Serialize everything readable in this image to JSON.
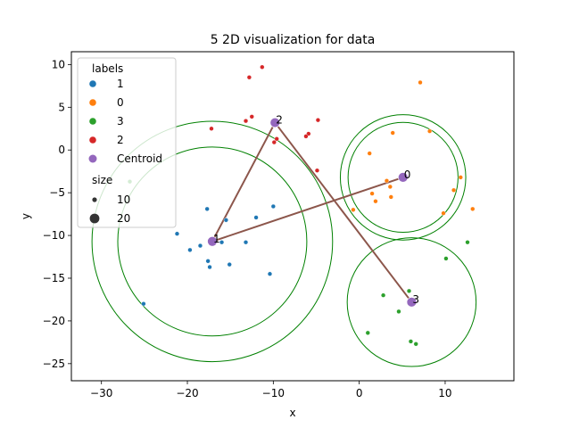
{
  "chart_data": {
    "type": "scatter",
    "title": "5 2D visualization for data",
    "xlabel": "x",
    "ylabel": "y",
    "xlim": [
      -33.5,
      18
    ],
    "ylim": [
      -27,
      11.5
    ],
    "xticks": [
      -30,
      -20,
      -10,
      0,
      10
    ],
    "yticks": [
      -25,
      -20,
      -15,
      -10,
      -5,
      0,
      5,
      10
    ],
    "xtick_labels": [
      "−30",
      "−20",
      "−10",
      "0",
      "10"
    ],
    "ytick_labels": [
      "−25",
      "−20",
      "−15",
      "−10",
      "−5",
      "0",
      "5",
      "10"
    ],
    "grid": false,
    "legend_placement": "top-left",
    "legend": {
      "labels_title": "labels",
      "entries": [
        {
          "label": "1",
          "color": "#1f77b4"
        },
        {
          "label": "0",
          "color": "#ff7f0e"
        },
        {
          "label": "3",
          "color": "#2ca02c"
        },
        {
          "label": "2",
          "color": "#d62728"
        },
        {
          "label": "Centroid",
          "color": "#9467bd"
        }
      ],
      "size_title": "size",
      "size_entries": [
        {
          "label": "10",
          "size": 10
        },
        {
          "label": "20",
          "size": 20
        }
      ]
    },
    "series": [
      {
        "label": "1",
        "color": "#1f77b4",
        "points": [
          [
            -17.7,
            -6.9
          ],
          [
            -15.5,
            -8.2
          ],
          [
            -12,
            -7.9
          ],
          [
            -10,
            -6.6
          ],
          [
            -21.2,
            -9.8
          ],
          [
            -19.7,
            -11.7
          ],
          [
            -18.5,
            -11.2
          ],
          [
            -16,
            -10.8
          ],
          [
            -13.2,
            -10.8
          ],
          [
            -17.6,
            -13
          ],
          [
            -17.4,
            -13.7
          ],
          [
            -15.1,
            -13.4
          ],
          [
            -10.4,
            -14.5
          ],
          [
            -25.1,
            -18
          ]
        ]
      },
      {
        "label": "0",
        "color": "#ff7f0e",
        "points": [
          [
            7.1,
            7.9
          ],
          [
            8.2,
            2.2
          ],
          [
            3.9,
            2
          ],
          [
            1.2,
            -0.4
          ],
          [
            11.8,
            -3.2
          ],
          [
            3.2,
            -3.6
          ],
          [
            11,
            -4.7
          ],
          [
            1.5,
            -5.1
          ],
          [
            3.6,
            -4.3
          ],
          [
            3.7,
            -5.5
          ],
          [
            1.9,
            -6
          ],
          [
            -0.7,
            -7
          ],
          [
            13.2,
            -6.9
          ],
          [
            9.8,
            -7.4
          ]
        ]
      },
      {
        "label": "3",
        "color": "#2ca02c",
        "points": [
          [
            -26.7,
            -3.7
          ],
          [
            12.6,
            -10.8
          ],
          [
            10.1,
            -12.7
          ],
          [
            5.8,
            -16.5
          ],
          [
            2.8,
            -17
          ],
          [
            4.6,
            -18.9
          ],
          [
            1,
            -21.4
          ],
          [
            6,
            -22.4
          ],
          [
            6.6,
            -22.7
          ]
        ]
      },
      {
        "label": "2",
        "color": "#d62728",
        "points": [
          [
            -11.3,
            9.7
          ],
          [
            -12.8,
            8.5
          ],
          [
            -12.5,
            3.9
          ],
          [
            -13.2,
            3.4
          ],
          [
            -4.8,
            3.5
          ],
          [
            -17.2,
            2.5
          ],
          [
            -5.9,
            1.9
          ],
          [
            -6.2,
            1.6
          ],
          [
            -9.6,
            1.3
          ],
          [
            -9.9,
            0.9
          ],
          [
            -4.9,
            -2.4
          ]
        ]
      }
    ],
    "centroids": [
      {
        "label": "0",
        "x": 5.1,
        "y": -3.2,
        "radii": [
          7.3,
          6.4
        ]
      },
      {
        "label": "1",
        "x": -17.1,
        "y": -10.7,
        "radii": [
          14,
          11
        ]
      },
      {
        "label": "2",
        "x": -9.8,
        "y": 3.2,
        "radii": []
      },
      {
        "label": "3",
        "x": 6.1,
        "y": -17.8,
        "radii": [
          7.5
        ]
      }
    ],
    "connections": [
      [
        2,
        1
      ],
      [
        1,
        0
      ],
      [
        2,
        3
      ]
    ],
    "colors": {
      "centroid": "#9467bd",
      "circle": "#008000",
      "connection": "#8c564b"
    }
  }
}
